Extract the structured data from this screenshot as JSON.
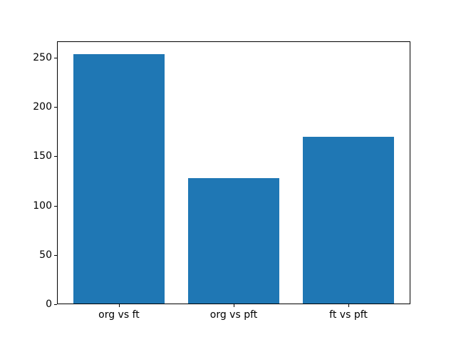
{
  "chart_data": {
    "type": "bar",
    "categories": [
      "org vs ft",
      "org vs pft",
      "ft vs pft"
    ],
    "values": [
      254,
      128,
      170
    ],
    "title": "",
    "xlabel": "",
    "ylabel": "",
    "ylim": [
      0,
      266.7
    ],
    "xlim": [
      -0.54,
      2.54
    ],
    "yticks": [
      0,
      50,
      100,
      150,
      200,
      250
    ],
    "bar_width": 0.8,
    "grid": false,
    "legend": false
  },
  "colors": {
    "background": "#ffffff",
    "bar": "#1f77b4",
    "spine": "#000000",
    "tick_label": "#000000"
  }
}
